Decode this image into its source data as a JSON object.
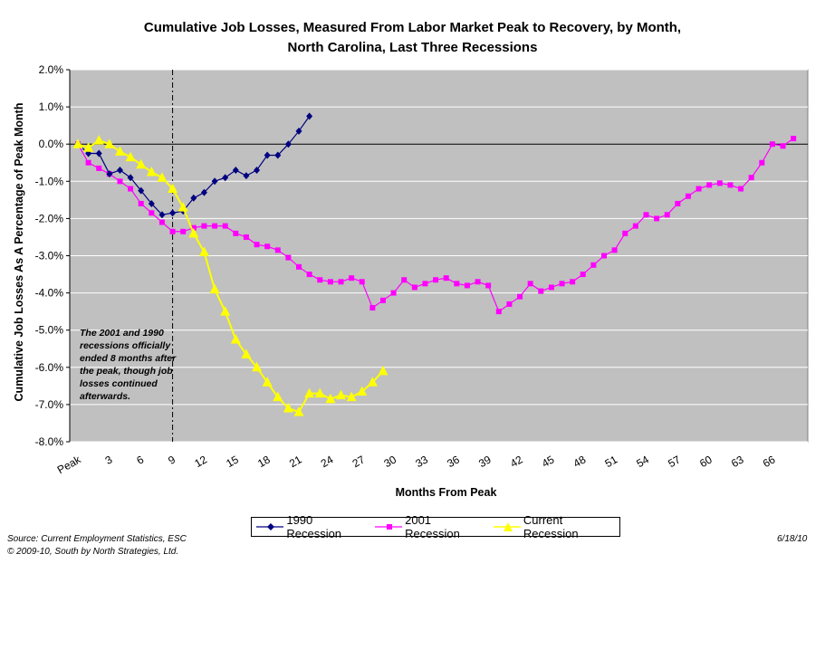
{
  "title_line1": "Cumulative Job Losses, Measured From Labor Market Peak to Recovery, by Month,",
  "title_line2": "North Carolina, Last Three Recessions",
  "note": "The 2001 and 1990 recessions officially ended 8 months after the peak, though job losses continued afterwards.",
  "source": "Source: Current Employment Statistics, ESC",
  "copyright": "© 2009-10, South by North Strategies, Ltd.",
  "date": "6/18/10",
  "chart_data": {
    "type": "line",
    "title": "Cumulative Job Losses, Measured From Labor Market Peak to Recovery, by Month, North Carolina, Last Three Recessions",
    "xlabel": "Months From Peak",
    "ylabel": "Cumulative Job Losses As A Percentage of Peak Month",
    "xlim": [
      0,
      68
    ],
    "ylim": [
      -8.0,
      2.0
    ],
    "x_tick_labels": [
      "Peak",
      "3",
      "6",
      "9",
      "12",
      "15",
      "18",
      "21",
      "24",
      "27",
      "30",
      "33",
      "36",
      "39",
      "42",
      "45",
      "48",
      "51",
      "54",
      "57",
      "60",
      "63",
      "66"
    ],
    "x_tick_values": [
      0,
      3,
      6,
      9,
      12,
      15,
      18,
      21,
      24,
      27,
      30,
      33,
      36,
      39,
      42,
      45,
      48,
      51,
      54,
      57,
      60,
      63,
      66
    ],
    "y_tick_labels": [
      "2.0%",
      "1.0%",
      "0.0%",
      "-1.0%",
      "-2.0%",
      "-3.0%",
      "-4.0%",
      "-5.0%",
      "-6.0%",
      "-7.0%",
      "-8.0%"
    ],
    "y_tick_values": [
      2,
      1,
      0,
      -1,
      -2,
      -3,
      -4,
      -5,
      -6,
      -7,
      -8
    ],
    "grid": true,
    "reference_line_x": 9,
    "legend_position": "bottom",
    "plot_background": "#c0c0c0",
    "series": [
      {
        "name": "1990 Recession",
        "color": "#000080",
        "marker": "diamond",
        "x": [
          0,
          1,
          2,
          3,
          4,
          5,
          6,
          7,
          8,
          9,
          10,
          11,
          12,
          13,
          14,
          15,
          16,
          17,
          18,
          19,
          20,
          21,
          22
        ],
        "values": [
          0.0,
          -0.25,
          -0.25,
          -0.8,
          -0.7,
          -0.9,
          -1.25,
          -1.6,
          -1.9,
          -1.85,
          -1.8,
          -1.45,
          -1.3,
          -1.0,
          -0.9,
          -0.7,
          -0.85,
          -0.7,
          -0.3,
          -0.3,
          0.0,
          0.35,
          0.75
        ]
      },
      {
        "name": "2001 Recession",
        "color": "#ff00ff",
        "marker": "square",
        "x": [
          0,
          1,
          2,
          3,
          4,
          5,
          6,
          7,
          8,
          9,
          10,
          11,
          12,
          13,
          14,
          15,
          16,
          17,
          18,
          19,
          20,
          21,
          22,
          23,
          24,
          25,
          26,
          27,
          28,
          29,
          30,
          31,
          32,
          33,
          34,
          35,
          36,
          37,
          38,
          39,
          40,
          41,
          42,
          43,
          44,
          45,
          46,
          47,
          48,
          49,
          50,
          51,
          52,
          53,
          54,
          55,
          56,
          57,
          58,
          59,
          60,
          61,
          62,
          63,
          64,
          65,
          66,
          67,
          68
        ],
        "values": [
          0.0,
          -0.5,
          -0.65,
          -0.8,
          -1.0,
          -1.2,
          -1.6,
          -1.85,
          -2.1,
          -2.35,
          -2.35,
          -2.25,
          -2.2,
          -2.2,
          -2.2,
          -2.4,
          -2.5,
          -2.7,
          -2.75,
          -2.85,
          -3.05,
          -3.3,
          -3.5,
          -3.65,
          -3.7,
          -3.7,
          -3.6,
          -3.7,
          -4.4,
          -4.2,
          -4.0,
          -3.65,
          -3.85,
          -3.75,
          -3.65,
          -3.6,
          -3.75,
          -3.8,
          -3.7,
          -3.8,
          -4.5,
          -4.3,
          -4.1,
          -3.75,
          -3.95,
          -3.85,
          -3.75,
          -3.7,
          -3.5,
          -3.25,
          -3.0,
          -2.85,
          -2.4,
          -2.2,
          -1.9,
          -2.0,
          -1.9,
          -1.6,
          -1.4,
          -1.2,
          -1.1,
          -1.05,
          -1.1,
          -1.2,
          -0.9,
          -0.5,
          0.0,
          -0.05,
          0.15
        ]
      },
      {
        "name": "Current Recession",
        "color": "#ffff00",
        "marker": "triangle",
        "x": [
          0,
          1,
          2,
          3,
          4,
          5,
          6,
          7,
          8,
          9,
          10,
          11,
          12,
          13,
          14,
          15,
          16,
          17,
          18,
          19,
          20,
          21,
          22,
          23,
          24,
          25,
          26,
          27,
          28,
          29
        ],
        "values": [
          0.0,
          -0.1,
          0.1,
          0.0,
          -0.2,
          -0.35,
          -0.55,
          -0.75,
          -0.9,
          -1.2,
          -1.7,
          -2.4,
          -2.9,
          -3.9,
          -4.5,
          -5.25,
          -5.65,
          -6.0,
          -6.4,
          -6.8,
          -7.1,
          -7.2,
          -6.7,
          -6.7,
          -6.85,
          -6.75,
          -6.8,
          -6.65,
          -6.4,
          -6.1
        ]
      }
    ]
  }
}
